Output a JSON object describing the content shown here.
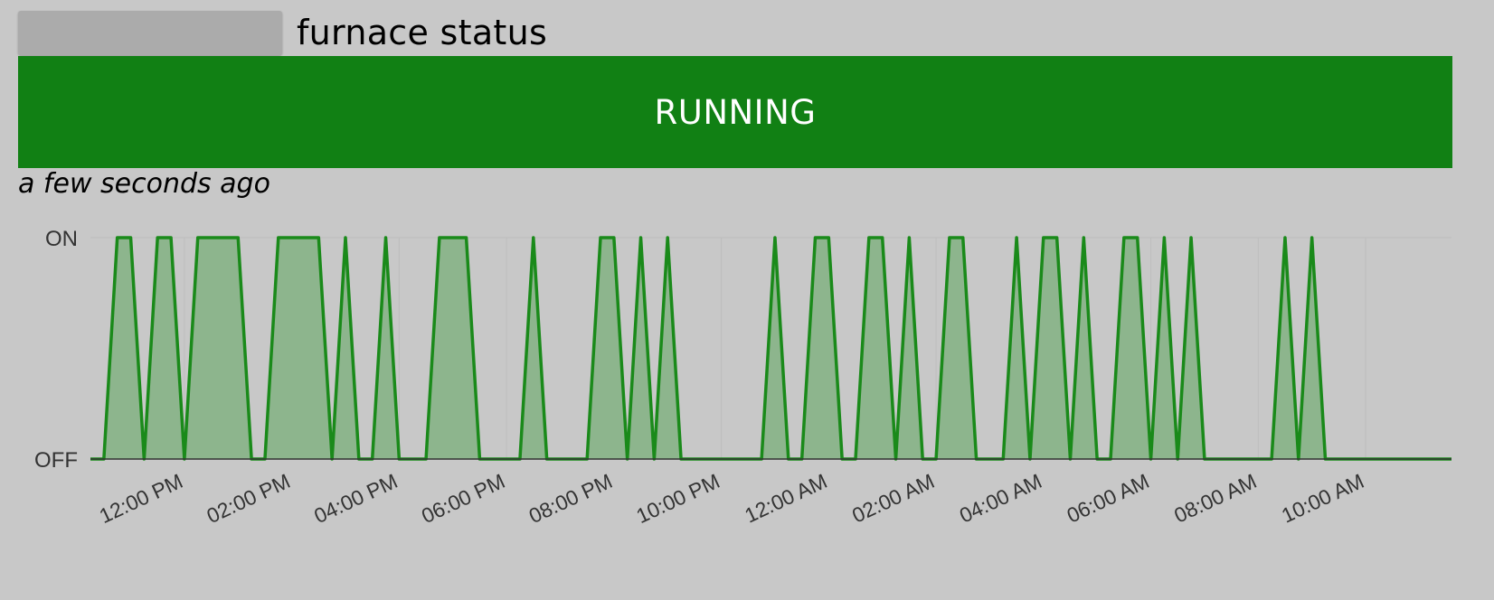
{
  "header": {
    "title": "furnace status"
  },
  "status": {
    "label": "RUNNING",
    "color": "#118014"
  },
  "last_updated": "a few seconds ago",
  "chart_data": {
    "type": "area",
    "y_categories": [
      "OFF",
      "ON"
    ],
    "x_ticks": [
      "12:00 PM",
      "02:00 PM",
      "04:00 PM",
      "06:00 PM",
      "08:00 PM",
      "10:00 PM",
      "12:00 AM",
      "02:00 AM",
      "04:00 AM",
      "06:00 AM",
      "08:00 AM",
      "10:00 AM"
    ],
    "x_tick_hours": [
      12,
      14,
      16,
      18,
      20,
      22,
      24,
      26,
      28,
      30,
      32,
      34
    ],
    "x_range_hours": [
      10.25,
      35.6
    ],
    "grid": true,
    "line_color": "#1a8a1a",
    "fill_color": "#8db58d",
    "series": [
      {
        "points": [
          [
            10.25,
            0
          ],
          [
            10.5,
            0
          ],
          [
            10.75,
            1
          ],
          [
            11.0,
            1
          ],
          [
            11.25,
            0
          ],
          [
            11.5,
            1
          ],
          [
            11.75,
            1
          ],
          [
            12.0,
            0
          ],
          [
            12.25,
            1
          ],
          [
            13.0,
            1
          ],
          [
            13.25,
            0
          ],
          [
            13.5,
            0
          ],
          [
            13.75,
            1
          ],
          [
            14.5,
            1
          ],
          [
            14.75,
            0
          ],
          [
            15.0,
            1
          ],
          [
            15.25,
            0
          ],
          [
            15.5,
            0
          ],
          [
            15.75,
            1
          ],
          [
            16.0,
            0
          ],
          [
            16.5,
            0
          ],
          [
            16.75,
            1
          ],
          [
            17.25,
            1
          ],
          [
            17.5,
            0
          ],
          [
            18.25,
            0
          ],
          [
            18.5,
            1
          ],
          [
            18.75,
            0
          ],
          [
            19.5,
            0
          ],
          [
            19.75,
            1
          ],
          [
            20.0,
            1
          ],
          [
            20.25,
            0
          ],
          [
            20.5,
            1
          ],
          [
            20.75,
            0
          ],
          [
            21.0,
            1
          ],
          [
            21.25,
            0
          ],
          [
            22.75,
            0
          ],
          [
            23.0,
            1
          ],
          [
            23.25,
            0
          ],
          [
            23.5,
            0
          ],
          [
            23.75,
            1
          ],
          [
            24.0,
            1
          ],
          [
            24.25,
            0
          ],
          [
            24.5,
            0
          ],
          [
            24.75,
            1
          ],
          [
            25.0,
            1
          ],
          [
            25.25,
            0
          ],
          [
            25.5,
            1
          ],
          [
            25.75,
            0
          ],
          [
            26.0,
            0
          ],
          [
            26.25,
            1
          ],
          [
            26.5,
            1
          ],
          [
            26.75,
            0
          ],
          [
            27.25,
            0
          ],
          [
            27.5,
            1
          ],
          [
            27.75,
            0
          ],
          [
            28.0,
            1
          ],
          [
            28.25,
            1
          ],
          [
            28.5,
            0
          ],
          [
            28.75,
            1
          ],
          [
            29.0,
            0
          ],
          [
            29.25,
            0
          ],
          [
            29.5,
            1
          ],
          [
            29.75,
            1
          ],
          [
            30.0,
            0
          ],
          [
            30.25,
            1
          ],
          [
            30.5,
            0
          ],
          [
            30.75,
            1
          ],
          [
            31.0,
            0
          ],
          [
            32.25,
            0
          ],
          [
            32.5,
            1
          ],
          [
            32.75,
            0
          ],
          [
            33.0,
            1
          ],
          [
            33.25,
            0
          ],
          [
            35.6,
            0
          ]
        ]
      }
    ]
  }
}
